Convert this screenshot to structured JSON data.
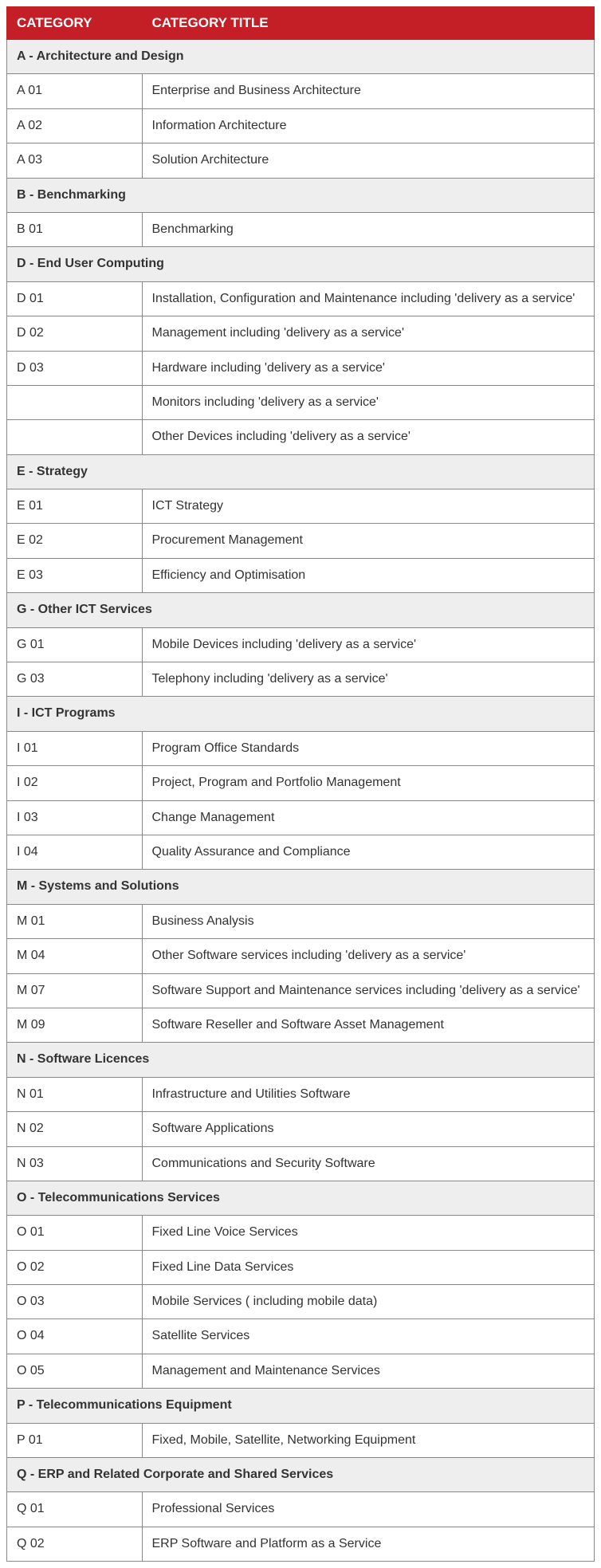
{
  "table": {
    "header": {
      "col1": "CATEGORY",
      "col2": "CATEGORY TITLE"
    },
    "colors": {
      "header_bg": "#c41e26",
      "header_text": "#ffffff",
      "section_bg": "#eeeeee",
      "row_bg": "#ffffff",
      "text": "#333333",
      "border": "#888888"
    },
    "col1_width_percent": 23,
    "font_size_header": 17,
    "font_size_body": 16,
    "sections": [
      {
        "title": "A  - Architecture and Design",
        "rows": [
          {
            "code": "A 01",
            "title": "Enterprise and Business Architecture"
          },
          {
            "code": "A 02",
            "title": "Information Architecture"
          },
          {
            "code": "A 03",
            "title": "Solution Architecture"
          }
        ]
      },
      {
        "title": "B - Benchmarking",
        "rows": [
          {
            "code": "B 01",
            "title": "Benchmarking"
          }
        ]
      },
      {
        "title": "D - End User Computing",
        "rows": [
          {
            "code": "D 01",
            "title": "Installation, Configuration and Maintenance including 'delivery as a service'"
          },
          {
            "code": "D 02",
            "title": "Management including 'delivery as a service'"
          },
          {
            "code": "D 03",
            "title": "Hardware including 'delivery as a service'"
          },
          {
            "code": "",
            "title": "Monitors including 'delivery as a service'"
          },
          {
            "code": "",
            "title": "Other  Devices including 'delivery as a service'"
          }
        ]
      },
      {
        "title": "E - Strategy",
        "rows": [
          {
            "code": "E 01",
            "title": "ICT Strategy"
          },
          {
            "code": "E 02",
            "title": "Procurement Management"
          },
          {
            "code": "E 03",
            "title": "Efficiency and Optimisation"
          }
        ]
      },
      {
        "title": "G - Other ICT Services",
        "rows": [
          {
            "code": "G 01",
            "title": "Mobile Devices including 'delivery as a service'"
          },
          {
            "code": "G 03",
            "title": "Telephony including 'delivery as a service'"
          }
        ]
      },
      {
        "title": "I - ICT Programs",
        "rows": [
          {
            "code": "I 01",
            "title": "Program Office Standards"
          },
          {
            "code": "I 02",
            "title": "Project, Program and Portfolio Management"
          },
          {
            "code": "I 03",
            "title": "Change Management"
          },
          {
            "code": "I 04",
            "title": "Quality Assurance and Compliance"
          }
        ]
      },
      {
        "title": "M - Systems and Solutions",
        "rows": [
          {
            "code": "M 01",
            "title": "Business Analysis"
          },
          {
            "code": "M 04",
            "title": "Other Software services including 'delivery as a service'"
          },
          {
            "code": "M 07",
            "title": "Software Support and Maintenance services including 'delivery as a service'"
          },
          {
            "code": "M 09",
            "title": "Software Reseller and Software Asset Management"
          }
        ]
      },
      {
        "title": "N - Software Licences",
        "rows": [
          {
            "code": "N 01",
            "title": "Infrastructure and Utilities Software"
          },
          {
            "code": "N 02",
            "title": "Software Applications"
          },
          {
            "code": "N 03",
            "title": "Communications and Security Software"
          }
        ]
      },
      {
        "title": "O - Telecommunications Services",
        "rows": [
          {
            "code": "O 01",
            "title": "Fixed Line Voice Services"
          },
          {
            "code": "O 02",
            "title": "Fixed Line Data Services"
          },
          {
            "code": "O 03",
            "title": "Mobile Services ( including mobile data)"
          },
          {
            "code": "O 04",
            "title": "Satellite Services"
          },
          {
            "code": "O 05",
            "title": "Management and Maintenance Services"
          }
        ]
      },
      {
        "title": "P - Telecommunications Equipment",
        "rows": [
          {
            "code": "P 01",
            "title": "Fixed, Mobile, Satellite, Networking Equipment"
          }
        ]
      },
      {
        "title": "Q - ERP and Related Corporate and Shared Services",
        "rows": [
          {
            "code": "Q 01",
            "title": "Professional Services"
          },
          {
            "code": "Q 02",
            "title": "ERP Software and Platform as a Service"
          }
        ]
      }
    ]
  }
}
